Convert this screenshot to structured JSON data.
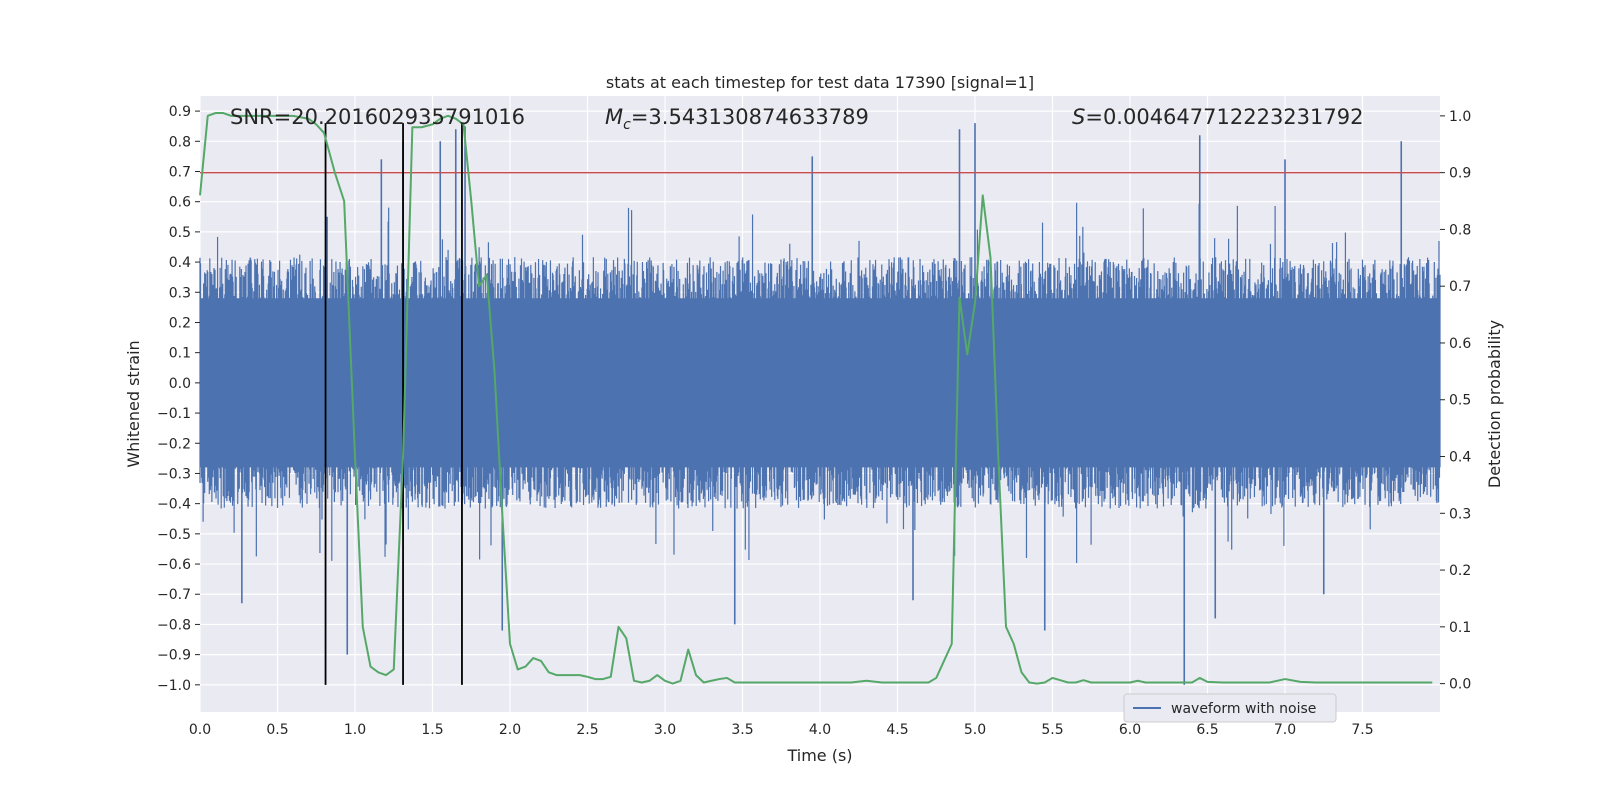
{
  "chart_data": {
    "type": "line",
    "title": "stats at each timestep for test data 17390 [signal=1]",
    "xlabel": "Time (s)",
    "ylabel_left": "Whitened strain",
    "ylabel_right": "Detection probability",
    "xlim": [
      0.0,
      8.0
    ],
    "ylim_left": [
      -1.09,
      0.95
    ],
    "ylim_right": [
      -0.05,
      1.035
    ],
    "x_ticks": [
      "0.0",
      "0.5",
      "1.0",
      "1.5",
      "2.0",
      "2.5",
      "3.0",
      "3.5",
      "4.0",
      "4.5",
      "5.0",
      "5.5",
      "6.0",
      "6.5",
      "7.0",
      "7.5"
    ],
    "y_ticks_left": [
      "0.9",
      "0.8",
      "0.7",
      "0.6",
      "0.5",
      "0.4",
      "0.3",
      "0.2",
      "0.1",
      "0.0",
      "−0.1",
      "−0.2",
      "−0.3",
      "−0.4",
      "−0.5",
      "−0.6",
      "−0.7",
      "−0.8",
      "−0.9",
      "−1.0"
    ],
    "y_ticks_right": [
      "1.0",
      "0.9",
      "0.8",
      "0.7",
      "0.6",
      "0.5",
      "0.4",
      "0.3",
      "0.2",
      "0.1",
      "0.0"
    ],
    "annotations": {
      "snr": "SNR=20.201602935791016",
      "mc_symbol": "M",
      "mc_sub": "c",
      "mc_value": "=3.543130874633789",
      "s_symbol": "S",
      "s_value": "=0.004647712223231792"
    },
    "legend": {
      "label": "waveform with noise",
      "position": "lower-right"
    },
    "threshold": {
      "y": 0.9,
      "axis": "right",
      "color": "#c44e52"
    },
    "vlines": {
      "x": [
        0.81,
        1.31,
        1.69
      ],
      "ymin": -1.0,
      "ymax": 0.86,
      "color": "#000000"
    },
    "waveform": {
      "name": "waveform with noise",
      "color": "#4c72b0",
      "time_range": [
        0.0,
        8.0
      ],
      "typical_envelope": 0.42,
      "notable_peaks": [
        {
          "x": 0.82,
          "y": 0.55
        },
        {
          "x": 1.17,
          "y": 0.74
        },
        {
          "x": 1.31,
          "y": 0.8
        },
        {
          "x": 1.55,
          "y": 0.8
        },
        {
          "x": 1.65,
          "y": 0.84
        },
        {
          "x": 1.71,
          "y": 0.85
        },
        {
          "x": 3.95,
          "y": 0.75
        },
        {
          "x": 4.9,
          "y": 0.84
        },
        {
          "x": 5.0,
          "y": 0.86
        },
        {
          "x": 6.45,
          "y": 0.82
        },
        {
          "x": 7.0,
          "y": 0.74
        },
        {
          "x": 7.75,
          "y": 0.8
        }
      ],
      "notable_troughs": [
        {
          "x": 0.27,
          "y": -0.73
        },
        {
          "x": 0.95,
          "y": -0.9
        },
        {
          "x": 1.95,
          "y": -0.82
        },
        {
          "x": 3.45,
          "y": -0.8
        },
        {
          "x": 4.6,
          "y": -0.72
        },
        {
          "x": 5.45,
          "y": -0.82
        },
        {
          "x": 6.35,
          "y": -1.0
        },
        {
          "x": 6.55,
          "y": -0.78
        },
        {
          "x": 7.25,
          "y": -0.7
        }
      ]
    },
    "detection_probability": {
      "color": "#55a868",
      "x": [
        0.0,
        0.05,
        0.1,
        0.15,
        0.2,
        0.3,
        0.4,
        0.5,
        0.6,
        0.7,
        0.75,
        0.8,
        0.87,
        0.93,
        1.0,
        1.05,
        1.1,
        1.15,
        1.2,
        1.25,
        1.31,
        1.37,
        1.43,
        1.5,
        1.55,
        1.6,
        1.65,
        1.7,
        1.75,
        1.8,
        1.85,
        1.9,
        1.95,
        2.0,
        2.05,
        2.1,
        2.15,
        2.2,
        2.25,
        2.3,
        2.35,
        2.4,
        2.45,
        2.5,
        2.55,
        2.6,
        2.65,
        2.7,
        2.75,
        2.8,
        2.85,
        2.9,
        2.95,
        3.0,
        3.05,
        3.1,
        3.15,
        3.2,
        3.25,
        3.3,
        3.35,
        3.4,
        3.45,
        3.5,
        3.55,
        3.6,
        3.7,
        3.8,
        3.9,
        4.0,
        4.1,
        4.2,
        4.3,
        4.4,
        4.5,
        4.6,
        4.7,
        4.75,
        4.8,
        4.85,
        4.9,
        4.95,
        5.0,
        5.05,
        5.1,
        5.15,
        5.2,
        5.25,
        5.3,
        5.35,
        5.4,
        5.45,
        5.5,
        5.55,
        5.6,
        5.65,
        5.7,
        5.75,
        5.8,
        5.85,
        5.9,
        5.95,
        6.0,
        6.05,
        6.1,
        6.2,
        6.3,
        6.4,
        6.45,
        6.5,
        6.6,
        6.7,
        6.8,
        6.9,
        7.0,
        7.1,
        7.2,
        7.3,
        7.4,
        7.5,
        7.6,
        7.7,
        7.8,
        7.9,
        7.95
      ],
      "y": [
        0.86,
        1.0,
        1.005,
        1.005,
        1.0,
        1.0,
        1.0,
        1.0,
        1.0,
        0.995,
        0.985,
        0.97,
        0.9,
        0.85,
        0.4,
        0.1,
        0.03,
        0.02,
        0.015,
        0.025,
        0.4,
        0.98,
        0.98,
        0.985,
        0.995,
        1.0,
        0.995,
        0.985,
        0.85,
        0.7,
        0.72,
        0.55,
        0.3,
        0.07,
        0.025,
        0.03,
        0.045,
        0.04,
        0.02,
        0.015,
        0.015,
        0.015,
        0.015,
        0.012,
        0.008,
        0.008,
        0.012,
        0.1,
        0.08,
        0.005,
        0.002,
        0.005,
        0.015,
        0.005,
        0.0,
        0.005,
        0.06,
        0.015,
        0.002,
        0.005,
        0.008,
        0.01,
        0.002,
        0.002,
        0.002,
        0.002,
        0.002,
        0.002,
        0.002,
        0.002,
        0.002,
        0.002,
        0.005,
        0.002,
        0.002,
        0.002,
        0.002,
        0.01,
        0.04,
        0.07,
        0.68,
        0.58,
        0.67,
        0.86,
        0.75,
        0.4,
        0.1,
        0.07,
        0.02,
        0.002,
        0.0,
        0.002,
        0.01,
        0.006,
        0.002,
        0.002,
        0.006,
        0.002,
        0.002,
        0.002,
        0.002,
        0.002,
        0.002,
        0.005,
        0.002,
        0.002,
        0.002,
        0.002,
        0.01,
        0.003,
        0.002,
        0.002,
        0.002,
        0.002,
        0.008,
        0.003,
        0.002,
        0.002,
        0.002,
        0.002,
        0.002,
        0.002,
        0.002,
        0.002,
        0.002
      ]
    }
  }
}
